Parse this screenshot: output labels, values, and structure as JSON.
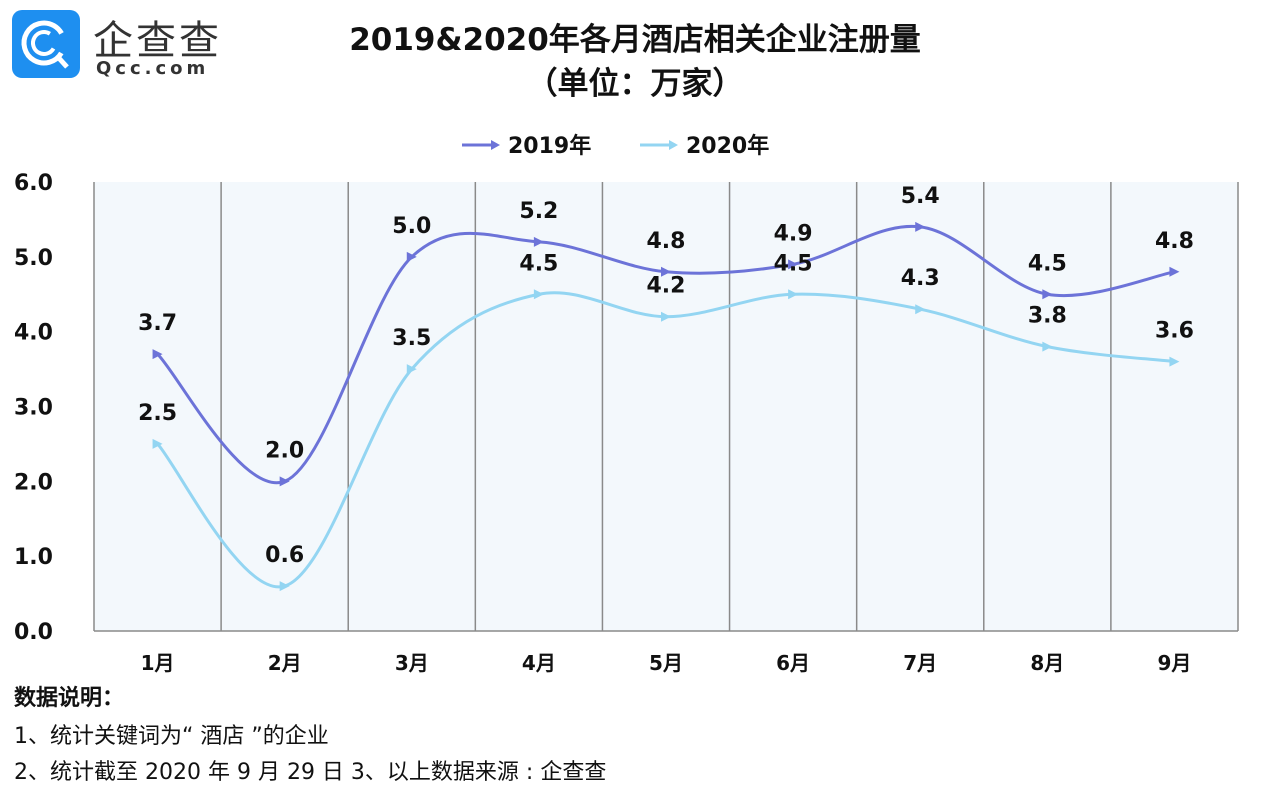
{
  "logo": {
    "cn": "企查查",
    "en": "Qcc.com",
    "color": "#1e8ff0"
  },
  "chart_data": {
    "type": "line",
    "title": "2019&2020年各月酒店相关企业注册量",
    "subtitle": "（单位：万家）",
    "categories": [
      "1月",
      "2月",
      "3月",
      "4月",
      "5月",
      "6月",
      "7月",
      "8月",
      "9月"
    ],
    "series": [
      {
        "name": "2019年",
        "color": "#6c73d8",
        "values": [
          3.7,
          2.0,
          5.0,
          5.2,
          4.8,
          4.9,
          5.4,
          4.5,
          4.8
        ]
      },
      {
        "name": "2020年",
        "color": "#93d5f2",
        "values": [
          2.5,
          0.6,
          3.5,
          4.5,
          4.2,
          4.5,
          4.3,
          3.8,
          3.6
        ]
      }
    ],
    "yticks": [
      "0.0",
      "1.0",
      "2.0",
      "3.0",
      "4.0",
      "5.0",
      "6.0"
    ],
    "ylim": [
      0,
      6
    ],
    "legend": "top-center",
    "grid": "vertical",
    "background": "#f3f8fc"
  },
  "notes": {
    "heading": "数据说明：",
    "line1": "1、统计关键词为“ 酒店 ”的企业",
    "line2": "2、统计截至 2020 年 9 月 29 日 3、以上数据来源 : 企查查"
  }
}
